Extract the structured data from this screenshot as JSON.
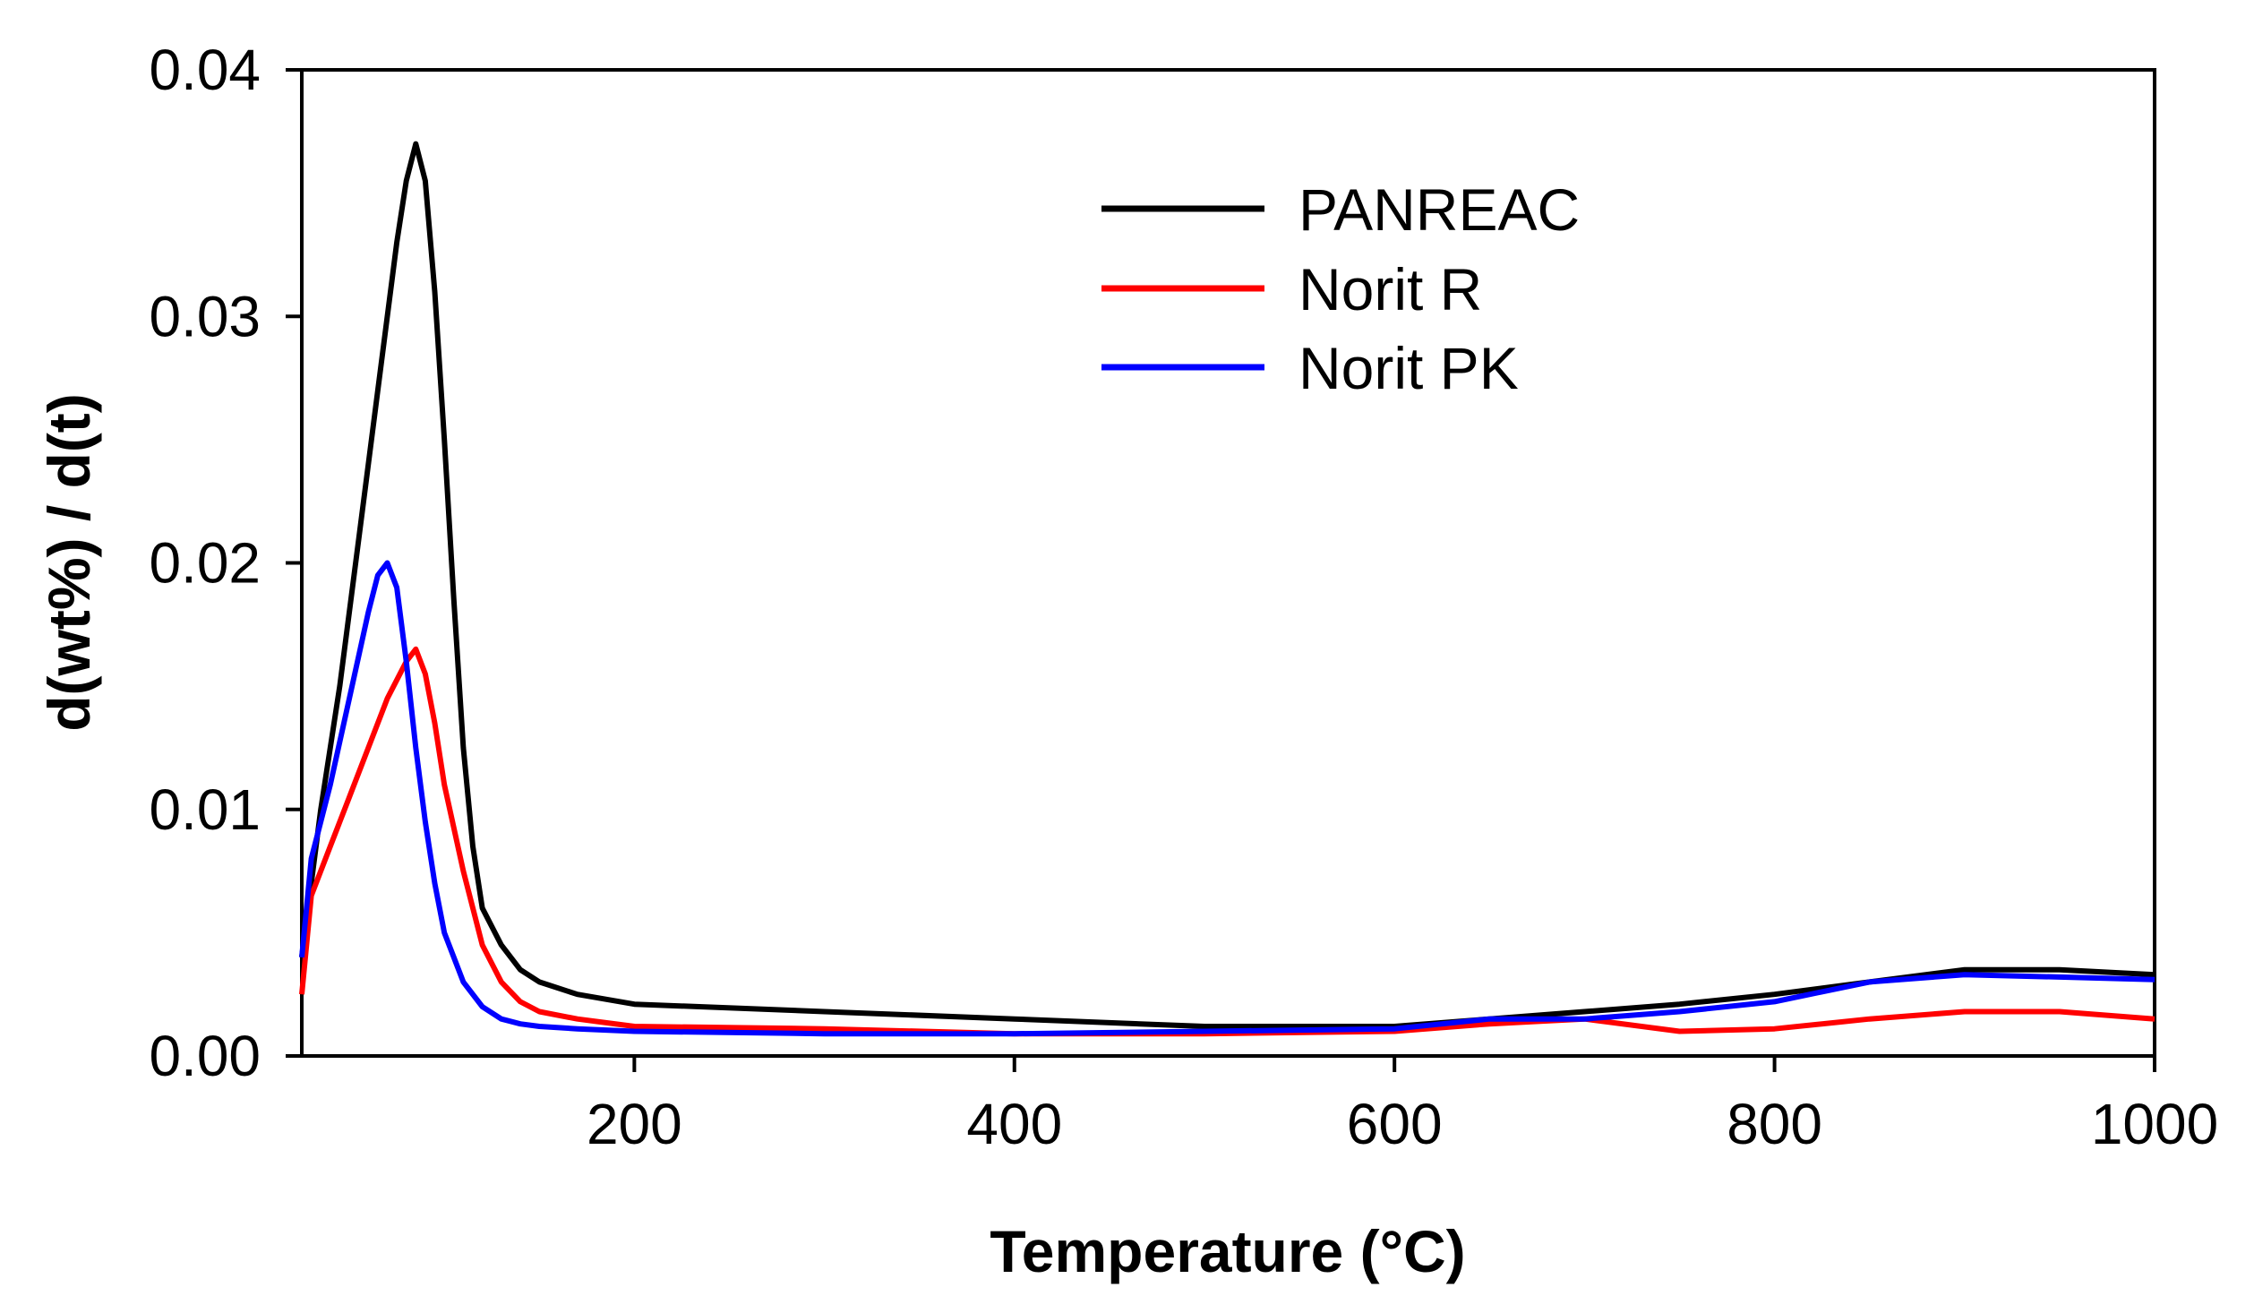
{
  "chart_data": {
    "type": "line",
    "title": "",
    "xlabel": "Temperature (°C)",
    "ylabel": "d(wt%) / d(t)",
    "xlim": [
      25,
      1000
    ],
    "ylim": [
      0,
      0.04
    ],
    "x_ticks": [
      200,
      400,
      600,
      800,
      1000
    ],
    "x_tick_labels": [
      "200",
      "400",
      "600",
      "800",
      "1000"
    ],
    "y_ticks": [
      0,
      0.01,
      0.02,
      0.03,
      0.04
    ],
    "y_tick_labels": [
      "0.00",
      "0.01",
      "0.02",
      "0.03",
      "0.04"
    ],
    "grid": false,
    "legend_position": "top-center",
    "series": [
      {
        "name": "PANREAC",
        "color": "#000000",
        "x": [
          25,
          35,
          45,
          55,
          65,
          75,
          80,
          85,
          90,
          95,
          100,
          105,
          110,
          115,
          120,
          130,
          140,
          150,
          170,
          200,
          300,
          400,
          500,
          600,
          650,
          700,
          750,
          800,
          850,
          900,
          950,
          1000
        ],
        "y": [
          0.004,
          0.01,
          0.015,
          0.021,
          0.027,
          0.033,
          0.0355,
          0.037,
          0.0355,
          0.031,
          0.025,
          0.0185,
          0.0125,
          0.0085,
          0.006,
          0.0045,
          0.0035,
          0.003,
          0.0025,
          0.0021,
          0.0018,
          0.0015,
          0.0012,
          0.0012,
          0.0015,
          0.0018,
          0.0021,
          0.0025,
          0.003,
          0.0035,
          0.0035,
          0.0033
        ]
      },
      {
        "name": "Norit R",
        "color": "#ff0000",
        "x": [
          25,
          30,
          40,
          50,
          60,
          70,
          80,
          85,
          90,
          95,
          100,
          110,
          120,
          130,
          140,
          150,
          170,
          200,
          300,
          400,
          500,
          600,
          650,
          700,
          750,
          800,
          850,
          900,
          950,
          1000
        ],
        "y": [
          0.0025,
          0.0065,
          0.0085,
          0.0105,
          0.0125,
          0.0145,
          0.016,
          0.0165,
          0.0155,
          0.0135,
          0.011,
          0.0075,
          0.0045,
          0.003,
          0.0022,
          0.0018,
          0.0015,
          0.0012,
          0.0011,
          0.0009,
          0.0009,
          0.001,
          0.0013,
          0.0015,
          0.001,
          0.0011,
          0.0015,
          0.0018,
          0.0018,
          0.0015
        ]
      },
      {
        "name": "Norit PK",
        "color": "#0000ff",
        "x": [
          25,
          30,
          40,
          50,
          60,
          65,
          70,
          75,
          80,
          85,
          90,
          95,
          100,
          110,
          120,
          130,
          140,
          150,
          170,
          200,
          300,
          400,
          500,
          600,
          650,
          700,
          750,
          800,
          850,
          900,
          950,
          1000
        ],
        "y": [
          0.004,
          0.008,
          0.011,
          0.0145,
          0.018,
          0.0195,
          0.02,
          0.019,
          0.016,
          0.0125,
          0.0095,
          0.007,
          0.005,
          0.003,
          0.002,
          0.0015,
          0.0013,
          0.0012,
          0.0011,
          0.001,
          0.0009,
          0.0009,
          0.001,
          0.0011,
          0.0015,
          0.0015,
          0.0018,
          0.0022,
          0.003,
          0.0033,
          0.0032,
          0.0031
        ]
      }
    ]
  }
}
